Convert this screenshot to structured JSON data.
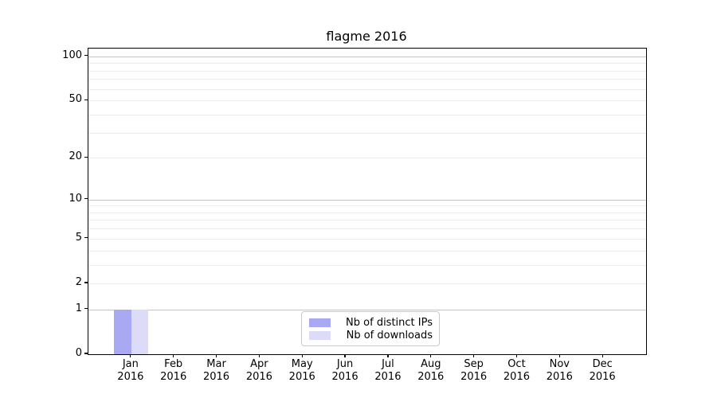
{
  "chart_data": {
    "type": "bar",
    "title": "flagme 2016",
    "months": [
      "Jan",
      "Feb",
      "Mar",
      "Apr",
      "May",
      "Jun",
      "Jul",
      "Aug",
      "Sep",
      "Oct",
      "Nov",
      "Dec"
    ],
    "year": "2016",
    "series": [
      {
        "name": "Nb of distinct IPs",
        "color": "#a9a9f3",
        "values": [
          1,
          0,
          0,
          0,
          0,
          0,
          0,
          0,
          0,
          0,
          0,
          0
        ]
      },
      {
        "name": "Nb of downloads",
        "color": "#dcdcf9",
        "values": [
          1,
          0,
          0,
          0,
          0,
          0,
          0,
          0,
          0,
          0,
          0,
          0
        ]
      }
    ],
    "y_scale": "log1p",
    "ylim": [
      0,
      113
    ],
    "y_ticks": [
      0,
      1,
      2,
      5,
      10,
      20,
      50,
      100
    ],
    "grid_major_values": [
      1,
      10,
      100
    ],
    "grid_minor_values": [
      2,
      3,
      4,
      5,
      6,
      7,
      8,
      9,
      20,
      30,
      40,
      50,
      60,
      70,
      80,
      90
    ],
    "grid_major_color": "#c4c4c4",
    "grid_minor_color": "#ececec",
    "legend_position": "lower center",
    "xlabel": "",
    "ylabel": ""
  }
}
